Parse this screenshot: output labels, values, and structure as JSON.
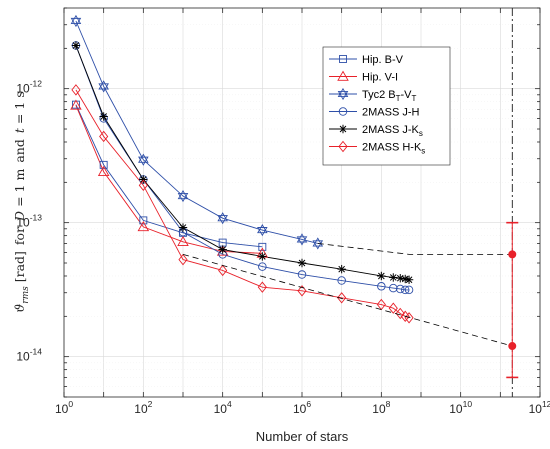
{
  "chart_data": {
    "type": "line",
    "x_scale": "log",
    "y_scale": "log",
    "xlim": [
      1,
      1000000000000.0
    ],
    "ylim": [
      5e-15,
      4e-12
    ],
    "grid": true,
    "legend_position": "top-right",
    "xlabel": "Number of stars",
    "ylabel_text": {
      "symbol": "ϑ",
      "subscript": "rms",
      "unit": "[rad]",
      "for": "for",
      "D": "D",
      "eq1": "= 1 m",
      "and": "and",
      "t": "t",
      "eq2": "= 1 s"
    },
    "x_tick_labels": [
      {
        "base": "10",
        "exp": "0"
      },
      {
        "base": "10",
        "exp": "2"
      },
      {
        "base": "10",
        "exp": "4"
      },
      {
        "base": "10",
        "exp": "6"
      },
      {
        "base": "10",
        "exp": "8"
      },
      {
        "base": "10",
        "exp": "10"
      },
      {
        "base": "10",
        "exp": "12"
      }
    ],
    "y_tick_labels": [
      {
        "base": "10",
        "exp": "-14"
      },
      {
        "base": "10",
        "exp": "-13"
      },
      {
        "base": "10",
        "exp": "-12"
      }
    ],
    "series": [
      {
        "name": "Hip. B-V",
        "legend": {
          "main": "Hip. B-V"
        },
        "color": "#2e4fa8",
        "marker": "square",
        "x": [
          2,
          10,
          100,
          1000,
          10000,
          100000
        ],
        "y": [
          7.6e-13,
          2.7e-13,
          1.04e-13,
          8.4e-14,
          7.1e-14,
          6.6e-14
        ]
      },
      {
        "name": "Hip. V-I",
        "legend": {
          "main": "Hip. V-I"
        },
        "color": "#e8212a",
        "marker": "triangle",
        "x": [
          2,
          10,
          100,
          1000,
          10000,
          100000
        ],
        "y": [
          7.5e-13,
          2.4e-13,
          9.3e-14,
          7.2e-14,
          6.1e-14,
          5.9e-14
        ]
      },
      {
        "name": "Tyc2 BT-VT",
        "legend": {
          "p1": "Tyc2 B",
          "s1": "T",
          "p2": "-V",
          "s2": "T"
        },
        "color": "#2e4fa8",
        "marker": "hexagram",
        "x": [
          2,
          10,
          100,
          1000,
          10000,
          100000,
          1000000,
          2500000
        ],
        "y": [
          3.2e-12,
          1.04e-12,
          2.95e-13,
          1.58e-13,
          1.08e-13,
          8.8e-14,
          7.5e-14,
          7e-14
        ]
      },
      {
        "name": "2MASS J-H",
        "legend": {
          "main": "2MASS J-H"
        },
        "color": "#2e4fa8",
        "marker": "circle",
        "x": [
          2,
          10,
          100,
          1000,
          10000,
          100000,
          1000000,
          10000000,
          100000000,
          200000000,
          300000000,
          400000000,
          500000000
        ],
        "y": [
          2.1e-12,
          6e-13,
          2.1e-13,
          8.5e-14,
          5.8e-14,
          4.7e-14,
          4.1e-14,
          3.7e-14,
          3.35e-14,
          3.25e-14,
          3.2e-14,
          3.15e-14,
          3.15e-14
        ]
      },
      {
        "name": "2MASS J-Ks",
        "legend": {
          "p1": "2MASS J-K",
          "s1": "s"
        },
        "color": "#000000",
        "marker": "asterisk",
        "x": [
          2,
          10,
          100,
          1000,
          10000,
          100000,
          1000000,
          10000000,
          100000000,
          200000000,
          300000000,
          400000000,
          500000000
        ],
        "y": [
          2.1e-12,
          6.2e-13,
          2.1e-13,
          9.2e-14,
          6.3e-14,
          5.6e-14,
          5e-14,
          4.5e-14,
          4e-14,
          3.9e-14,
          3.85e-14,
          3.8e-14,
          3.75e-14
        ]
      },
      {
        "name": "2MASS H-Ks",
        "legend": {
          "p1": "2MASS H-K",
          "s1": "s"
        },
        "color": "#e8212a",
        "marker": "diamond",
        "x": [
          2,
          10,
          100,
          1000,
          10000,
          100000,
          1000000,
          10000000,
          100000000,
          200000000,
          300000000,
          400000000,
          500000000
        ],
        "y": [
          9.8e-13,
          4.4e-13,
          1.9e-13,
          5.3e-14,
          4.4e-14,
          3.3e-14,
          3.1e-14,
          2.75e-14,
          2.45e-14,
          2.3e-14,
          2.1e-14,
          2e-14,
          1.95e-14
        ]
      }
    ],
    "extrapolations": [
      {
        "color": "#000000",
        "dash": "dashed",
        "x": [
          2500000,
          500000000,
          200000000000.0
        ],
        "y": [
          7e-14,
          5.8e-14,
          5.8e-14
        ]
      },
      {
        "color": "#000000",
        "dash": "dashed",
        "x": [
          1000,
          200000000000.0
        ],
        "y": [
          5.8e-14,
          1.2e-14
        ]
      }
    ],
    "vertical_marker": {
      "x": 200000000000.0,
      "color": "#000000",
      "style": "dash-dot"
    },
    "error_bar": {
      "x": 200000000000.0,
      "y_upper": 1e-13,
      "y_lower": 7e-15,
      "points": [
        5.8e-14,
        1.2e-14
      ],
      "color": "#e8212a"
    }
  }
}
